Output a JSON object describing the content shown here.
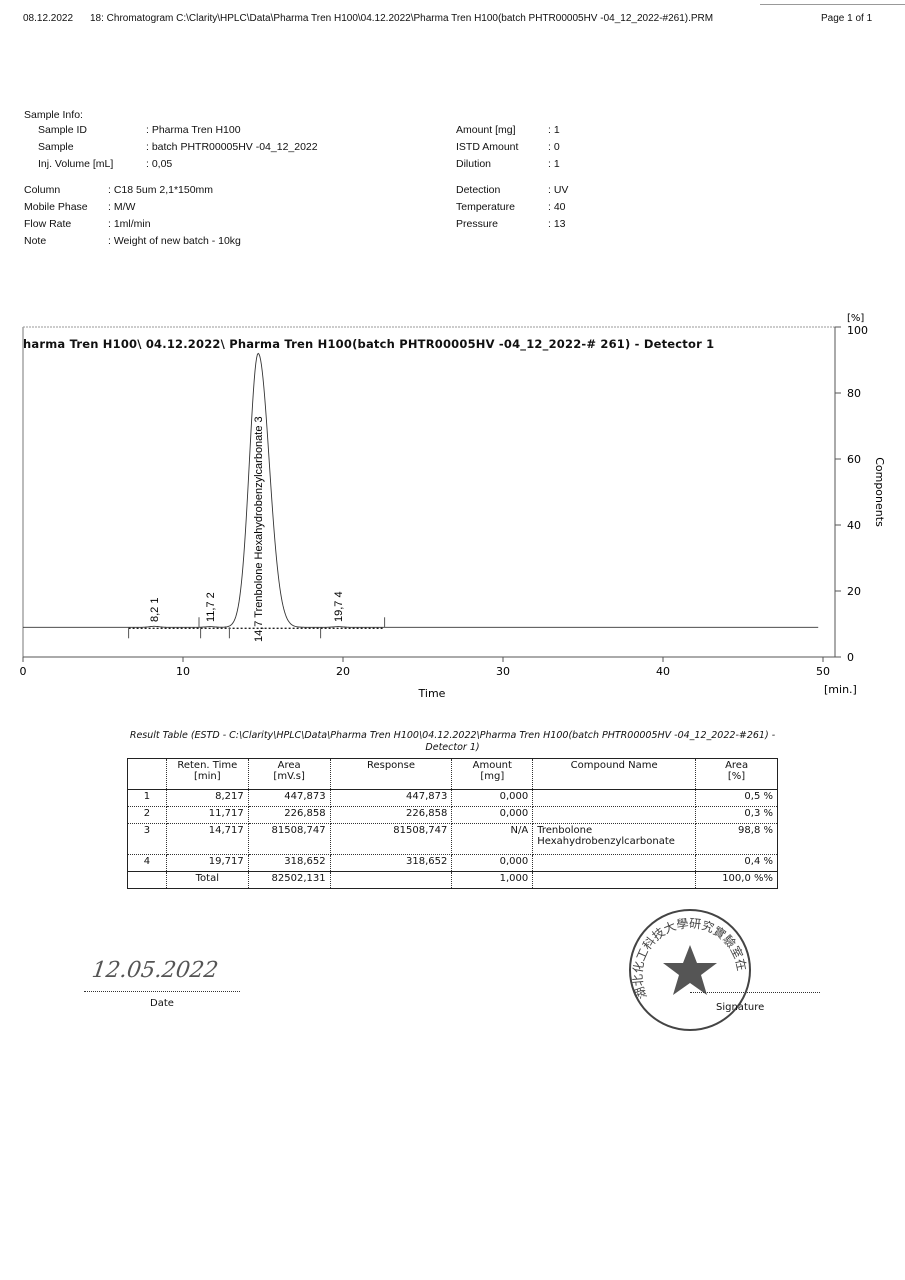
{
  "header": {
    "date": "08.12.2022",
    "title": "18: Chromatogram C:\\Clarity\\HPLC\\Data\\Pharma Tren H100\\04.12.2022\\Pharma Tren H100(batch PHTR00005HV -04_12_2022-#261).PRM",
    "page": "Page 1 of 1"
  },
  "sample_info": {
    "heading": "Sample Info:",
    "left": [
      {
        "label": "Sample ID",
        "value": ": Pharma Tren H100"
      },
      {
        "label": "Sample",
        "value": ": batch PHTR00005HV -04_12_2022"
      },
      {
        "label": "Inj. Volume [mL]",
        "value": ": 0,05"
      },
      {
        "label": "Column",
        "value": ": C18 5um 2,1*150mm"
      },
      {
        "label": "Mobile Phase",
        "value": ": M/W"
      },
      {
        "label": "Flow Rate",
        "value": ": 1ml/min"
      },
      {
        "label": "Note",
        "value": ": Weight of new batch - 10kg"
      }
    ],
    "right": [
      {
        "label": "Amount [mg]",
        "value": ": 1"
      },
      {
        "label": "ISTD Amount",
        "value": ": 0"
      },
      {
        "label": "Dilution",
        "value": ": 1"
      },
      {
        "label": "Detection",
        "value": ": UV"
      },
      {
        "label": "Temperature",
        "value": ": 40"
      },
      {
        "label": "Pressure",
        "value": ": 13"
      }
    ]
  },
  "chart_data": {
    "type": "line",
    "title": "harma Tren H100\\ 04.12.2022\\ Pharma Tren H100(batch PHTR00005HV -04_12_2022-# 261) -  Detector 1",
    "xlabel": "Time",
    "xunit": "[min.]",
    "ylabel": "Components",
    "yunit": "[%]",
    "xlim": [
      0,
      50
    ],
    "ylim": [
      0,
      100
    ],
    "xticks": [
      "0",
      "10",
      "20",
      "30",
      "40",
      "50"
    ],
    "yticks": [
      "0",
      "20",
      "40",
      "60",
      "80",
      "100"
    ],
    "baseline": 9,
    "peaks": [
      {
        "time": 8.2,
        "label": "8,2",
        "number": "1",
        "height": 9.3,
        "name": ""
      },
      {
        "time": 11.7,
        "label": "11,7",
        "number": "2",
        "height": 9.2,
        "name": ""
      },
      {
        "time": 14.7,
        "label": "14,7",
        "number": "3",
        "height": 92,
        "name": "Trenbolone Hexahydrobenzylcarbonate"
      },
      {
        "time": 19.7,
        "label": "19,7",
        "number": "4",
        "height": 9.2,
        "name": ""
      }
    ]
  },
  "result_table": {
    "title": "Result Table (ESTD - C:\\Clarity\\HPLC\\Data\\Pharma Tren H100\\04.12.2022\\Pharma Tren H100(batch PHTR00005HV -04_12_2022-#261) -  Detector 1)",
    "headers": [
      [
        "",
        ""
      ],
      [
        "Reten. Time",
        "[min]"
      ],
      [
        "Area",
        "[mV.s]"
      ],
      [
        "Response",
        ""
      ],
      [
        "Amount",
        "[mg]"
      ],
      [
        "Compound Name",
        ""
      ],
      [
        "Area",
        "[%]"
      ]
    ],
    "rows": [
      [
        "1",
        "8,217",
        "447,873",
        "447,873",
        "0,000",
        "",
        "0,5 %"
      ],
      [
        "2",
        "11,717",
        "226,858",
        "226,858",
        "0,000",
        "",
        "0,3 %"
      ],
      [
        "3",
        "14,717",
        "81508,747",
        "81508,747",
        "N/A",
        "Trenbolone Hexahydrobenzylcarbonate",
        "98,8 %"
      ],
      [
        "4",
        "19,717",
        "318,652",
        "318,652",
        "0,000",
        "",
        "0,4 %"
      ]
    ],
    "total": [
      "",
      "Total",
      "82502,131",
      "",
      "1,000",
      "",
      "100,0 %%"
    ]
  },
  "footer": {
    "handwritten_date": "12.05.2022",
    "date_label": "Date",
    "signature_label": "Signature",
    "stamp_text": "湖北化工科技大學研究實驗室在"
  },
  "colors": {
    "ink": "#111111",
    "stamp": "#444444"
  }
}
